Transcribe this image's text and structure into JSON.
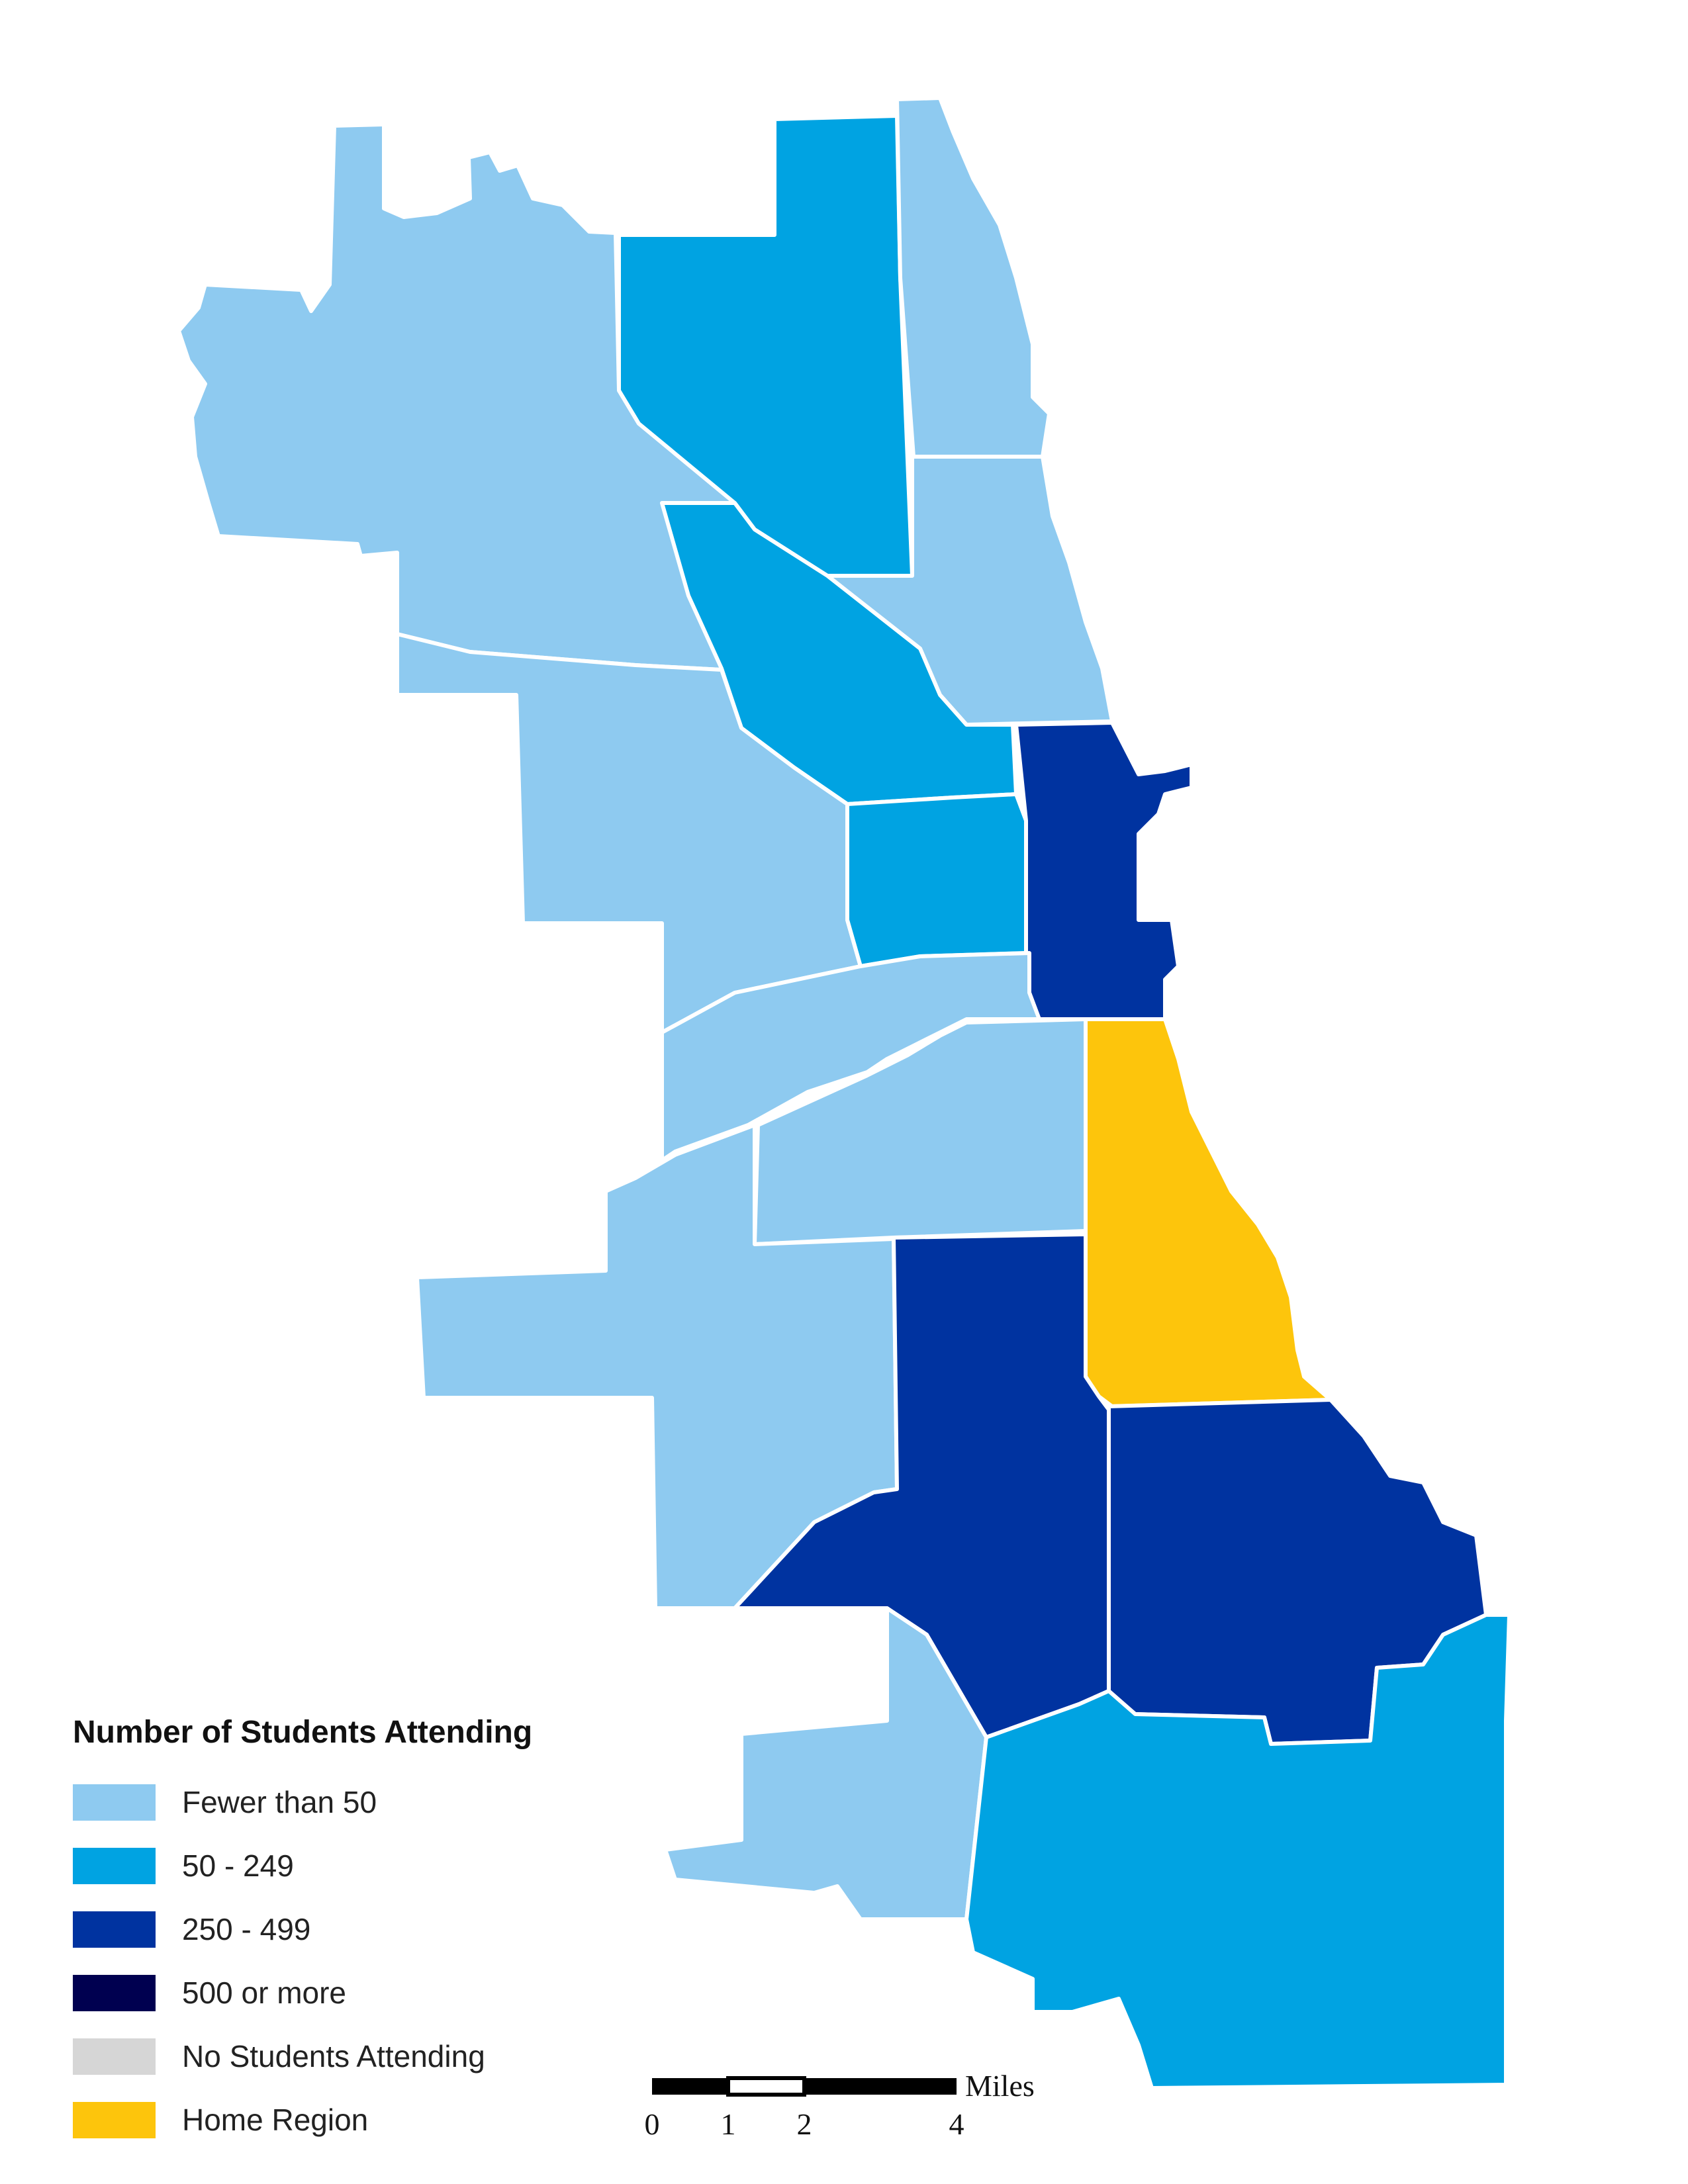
{
  "colors": {
    "fewer_than_50": "#8ecaf0",
    "range_50_249": "#00a3e2",
    "range_250_499": "#0033a0",
    "range_500_plus": "#000050",
    "no_students": "#d6d6d6",
    "home_region": "#fdc50c",
    "border": "#ffffff"
  },
  "legend": {
    "title": "Number of Students Attending",
    "items": [
      {
        "label": "Fewer than 50",
        "color": "#8ecaf0"
      },
      {
        "label": "50 - 249",
        "color": "#00a3e2"
      },
      {
        "label": "250 - 499",
        "color": "#0033a0"
      },
      {
        "label": "500 or more",
        "color": "#000050"
      },
      {
        "label": "No Students Attending",
        "color": "#d6d6d6"
      },
      {
        "label": "Home Region",
        "color": "#fdc50c"
      }
    ]
  },
  "scale_bar": {
    "unit": "Miles",
    "ticks": [
      "0",
      "1",
      "2",
      "4"
    ]
  },
  "regions": [
    {
      "id": "far-northwest",
      "category": "fewer_than_50"
    },
    {
      "id": "north-central",
      "category": "range_50_249"
    },
    {
      "id": "far-north-lakefront",
      "category": "fewer_than_50"
    },
    {
      "id": "north-lakefront",
      "category": "fewer_than_50"
    },
    {
      "id": "north-diagonal",
      "category": "range_50_249"
    },
    {
      "id": "west-side-north",
      "category": "fewer_than_50"
    },
    {
      "id": "near-west-central",
      "category": "range_50_249"
    },
    {
      "id": "central-downtown",
      "category": "range_250_499"
    },
    {
      "id": "southwest-diagonal",
      "category": "fewer_than_50"
    },
    {
      "id": "south-central-west",
      "category": "fewer_than_50"
    },
    {
      "id": "far-southwest",
      "category": "fewer_than_50"
    },
    {
      "id": "south-side-lakefront",
      "category": "home_region"
    },
    {
      "id": "south-side-west",
      "category": "range_250_499"
    },
    {
      "id": "south-side-east",
      "category": "range_250_499"
    },
    {
      "id": "far-south-west-small",
      "category": "fewer_than_50"
    },
    {
      "id": "far-south-east",
      "category": "range_50_249"
    }
  ]
}
